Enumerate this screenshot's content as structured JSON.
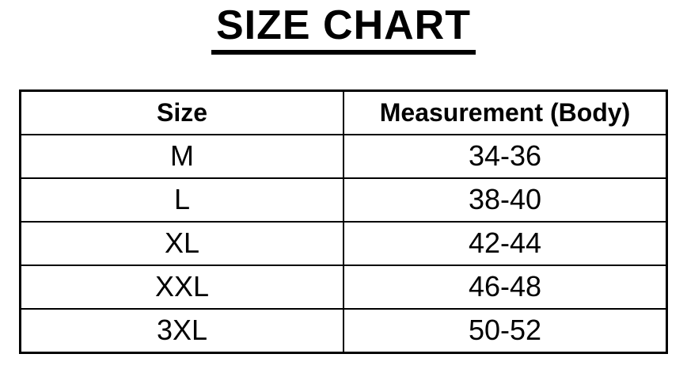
{
  "page": {
    "background_color": "#ffffff",
    "text_color": "#000000"
  },
  "title": "SIZE CHART",
  "size_chart": {
    "columns": [
      {
        "label": "Size"
      },
      {
        "label": "Measurement (Body)"
      }
    ],
    "rows": [
      {
        "size": "M",
        "measurement": "34-36"
      },
      {
        "size": "L",
        "measurement": "38-40"
      },
      {
        "size": "XL",
        "measurement": "42-44"
      },
      {
        "size": "XXL",
        "measurement": "46-48"
      },
      {
        "size": "3XL",
        "measurement": "50-52"
      }
    ]
  }
}
